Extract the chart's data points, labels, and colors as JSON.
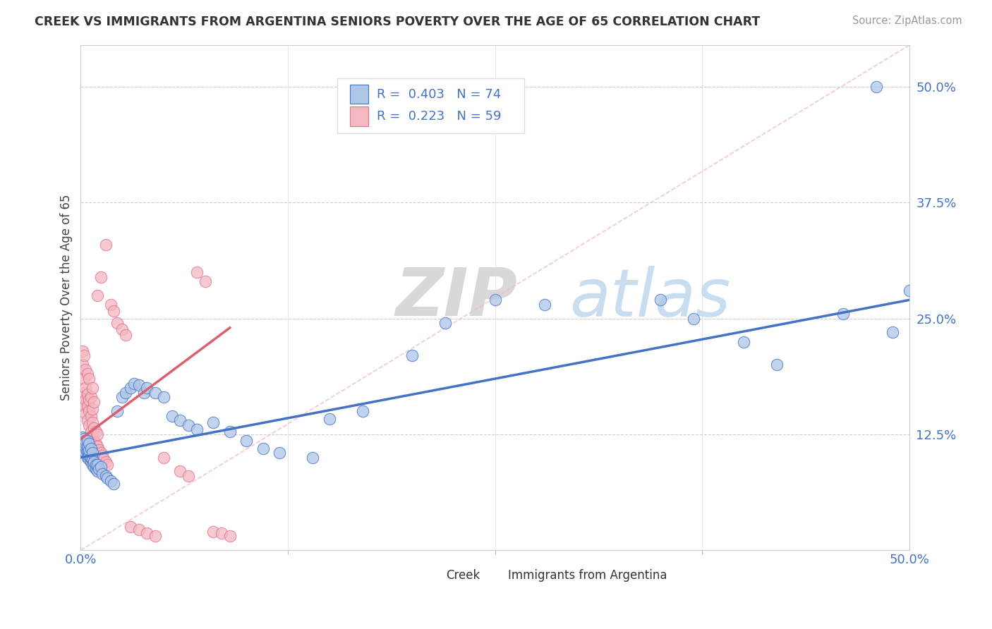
{
  "title": "CREEK VS IMMIGRANTS FROM ARGENTINA SENIORS POVERTY OVER THE AGE OF 65 CORRELATION CHART",
  "source": "Source: ZipAtlas.com",
  "ylabel": "Seniors Poverty Over the Age of 65",
  "legend_creek_R": "0.403",
  "legend_creek_N": "74",
  "legend_arg_R": "0.223",
  "legend_arg_N": "59",
  "creek_fill_color": "#aec6e8",
  "creek_edge_color": "#4472c4",
  "arg_fill_color": "#f4b8c1",
  "arg_edge_color": "#e07090",
  "creek_line_color": "#4472c4",
  "arg_line_color": "#d9606e",
  "diag_line_color": "#f4b8c1",
  "watermark_zip": "ZIP",
  "watermark_atlas": "atlas",
  "xmin": 0.0,
  "xmax": 0.5,
  "ymin": 0.0,
  "ymax": 0.545,
  "yticks": [
    0.125,
    0.25,
    0.375,
    0.5
  ],
  "ytick_labels": [
    "12.5%",
    "25.0%",
    "37.5%",
    "50.0%"
  ],
  "xtick_left": "0.0%",
  "xtick_right": "50.0%",
  "creek_scatter_x": [
    0.001,
    0.001,
    0.001,
    0.001,
    0.002,
    0.002,
    0.002,
    0.002,
    0.003,
    0.003,
    0.003,
    0.003,
    0.003,
    0.004,
    0.004,
    0.004,
    0.004,
    0.005,
    0.005,
    0.005,
    0.005,
    0.006,
    0.006,
    0.006,
    0.007,
    0.007,
    0.007,
    0.008,
    0.008,
    0.009,
    0.009,
    0.01,
    0.01,
    0.011,
    0.012,
    0.013,
    0.015,
    0.016,
    0.018,
    0.02,
    0.022,
    0.025,
    0.027,
    0.03,
    0.032,
    0.035,
    0.038,
    0.04,
    0.045,
    0.05,
    0.055,
    0.06,
    0.065,
    0.07,
    0.08,
    0.09,
    0.1,
    0.11,
    0.12,
    0.14,
    0.15,
    0.17,
    0.2,
    0.22,
    0.25,
    0.28,
    0.35,
    0.37,
    0.4,
    0.42,
    0.46,
    0.48,
    0.49,
    0.5
  ],
  "creek_scatter_y": [
    0.11,
    0.115,
    0.118,
    0.122,
    0.108,
    0.112,
    0.115,
    0.12,
    0.105,
    0.11,
    0.112,
    0.115,
    0.118,
    0.1,
    0.108,
    0.112,
    0.118,
    0.098,
    0.102,
    0.108,
    0.115,
    0.095,
    0.1,
    0.11,
    0.092,
    0.098,
    0.105,
    0.09,
    0.095,
    0.088,
    0.092,
    0.085,
    0.092,
    0.088,
    0.09,
    0.082,
    0.08,
    0.078,
    0.075,
    0.072,
    0.15,
    0.165,
    0.17,
    0.175,
    0.18,
    0.178,
    0.17,
    0.175,
    0.17,
    0.165,
    0.145,
    0.14,
    0.135,
    0.13,
    0.138,
    0.128,
    0.118,
    0.11,
    0.105,
    0.1,
    0.142,
    0.15,
    0.21,
    0.245,
    0.27,
    0.265,
    0.27,
    0.25,
    0.225,
    0.2,
    0.255,
    0.5,
    0.235,
    0.28
  ],
  "arg_scatter_x": [
    0.001,
    0.001,
    0.001,
    0.002,
    0.002,
    0.002,
    0.002,
    0.003,
    0.003,
    0.003,
    0.003,
    0.004,
    0.004,
    0.004,
    0.004,
    0.005,
    0.005,
    0.005,
    0.005,
    0.006,
    0.006,
    0.006,
    0.007,
    0.007,
    0.007,
    0.007,
    0.008,
    0.008,
    0.008,
    0.009,
    0.009,
    0.01,
    0.01,
    0.011,
    0.012,
    0.013,
    0.014,
    0.015,
    0.016,
    0.018,
    0.02,
    0.022,
    0.025,
    0.027,
    0.03,
    0.035,
    0.04,
    0.045,
    0.05,
    0.06,
    0.065,
    0.07,
    0.075,
    0.08,
    0.085,
    0.09,
    0.01,
    0.012,
    0.015
  ],
  "arg_scatter_y": [
    0.165,
    0.2,
    0.215,
    0.155,
    0.17,
    0.185,
    0.21,
    0.148,
    0.162,
    0.175,
    0.195,
    0.14,
    0.155,
    0.168,
    0.19,
    0.135,
    0.15,
    0.162,
    0.185,
    0.128,
    0.145,
    0.165,
    0.122,
    0.138,
    0.152,
    0.175,
    0.118,
    0.132,
    0.16,
    0.115,
    0.128,
    0.112,
    0.125,
    0.108,
    0.105,
    0.102,
    0.098,
    0.095,
    0.092,
    0.265,
    0.258,
    0.245,
    0.238,
    0.232,
    0.025,
    0.022,
    0.018,
    0.015,
    0.1,
    0.085,
    0.08,
    0.3,
    0.29,
    0.02,
    0.018,
    0.015,
    0.275,
    0.295,
    0.33
  ],
  "creek_line_x0": 0.0,
  "creek_line_y0": 0.1,
  "creek_line_x1": 0.5,
  "creek_line_y1": 0.27,
  "arg_line_x0": 0.0,
  "arg_line_y0": 0.12,
  "arg_line_x1": 0.09,
  "arg_line_y1": 0.24
}
